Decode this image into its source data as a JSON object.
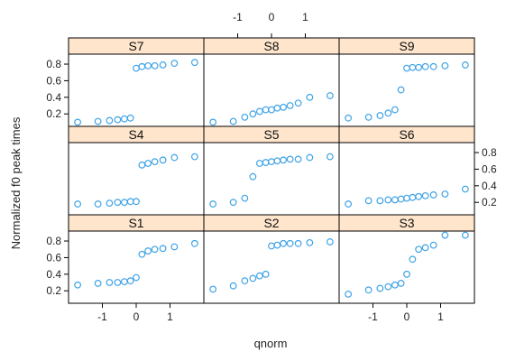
{
  "chart_data": {
    "type": "scatter",
    "layout": "trellis-3x3",
    "xlabel": "qnorm",
    "ylabel": "Normalized f0 peak times",
    "xlim": [
      -2,
      2
    ],
    "ylim": [
      0.05,
      0.92
    ],
    "x_ticks": [
      -1,
      0,
      1
    ],
    "y_ticks": [
      0.2,
      0.4,
      0.6,
      0.8
    ],
    "x_tick_labels": [
      "-1",
      "0",
      "1"
    ],
    "y_tick_labels": [
      "0.2",
      "0.4",
      "0.6",
      "0.8"
    ],
    "strip_color": "#ffe5cc",
    "point_color": "#3fa3e6",
    "panels": [
      {
        "name": "S7",
        "x": [
          -1.73,
          -1.13,
          -0.79,
          -0.55,
          -0.35,
          -0.17,
          0.0,
          0.17,
          0.35,
          0.55,
          0.79,
          1.13,
          1.73
        ],
        "y": [
          0.1,
          0.11,
          0.12,
          0.13,
          0.14,
          0.15,
          0.75,
          0.77,
          0.78,
          0.78,
          0.79,
          0.81,
          0.82
        ]
      },
      {
        "name": "S8",
        "x": [
          -1.73,
          -1.13,
          -0.79,
          -0.55,
          -0.35,
          -0.17,
          0.0,
          0.17,
          0.35,
          0.55,
          0.79,
          1.13,
          1.73
        ],
        "y": [
          0.1,
          0.11,
          0.16,
          0.2,
          0.23,
          0.25,
          0.25,
          0.27,
          0.28,
          0.3,
          0.33,
          0.4,
          0.42
        ]
      },
      {
        "name": "S9",
        "x": [
          -1.73,
          -1.13,
          -0.79,
          -0.55,
          -0.35,
          -0.17,
          0.0,
          0.17,
          0.35,
          0.55,
          0.79,
          1.13,
          1.73
        ],
        "y": [
          0.15,
          0.16,
          0.18,
          0.21,
          0.25,
          0.49,
          0.75,
          0.76,
          0.76,
          0.77,
          0.77,
          0.78,
          0.79
        ]
      },
      {
        "name": "S4",
        "x": [
          -1.73,
          -1.13,
          -0.79,
          -0.55,
          -0.35,
          -0.17,
          0.0,
          0.17,
          0.35,
          0.55,
          0.79,
          1.13,
          1.73
        ],
        "y": [
          0.18,
          0.18,
          0.19,
          0.2,
          0.2,
          0.21,
          0.21,
          0.65,
          0.67,
          0.69,
          0.71,
          0.74,
          0.75
        ]
      },
      {
        "name": "S5",
        "x": [
          -1.73,
          -1.13,
          -0.79,
          -0.55,
          -0.35,
          -0.17,
          0.0,
          0.17,
          0.35,
          0.55,
          0.79,
          1.13,
          1.73
        ],
        "y": [
          0.18,
          0.2,
          0.25,
          0.51,
          0.67,
          0.68,
          0.69,
          0.7,
          0.71,
          0.72,
          0.72,
          0.74,
          0.75
        ]
      },
      {
        "name": "S6",
        "x": [
          -1.73,
          -1.13,
          -0.79,
          -0.55,
          -0.35,
          -0.17,
          0.0,
          0.17,
          0.35,
          0.55,
          0.79,
          1.13,
          1.73
        ],
        "y": [
          0.18,
          0.22,
          0.22,
          0.23,
          0.23,
          0.24,
          0.25,
          0.26,
          0.27,
          0.28,
          0.29,
          0.3,
          0.36
        ]
      },
      {
        "name": "S1",
        "x": [
          -1.73,
          -1.13,
          -0.79,
          -0.55,
          -0.35,
          -0.17,
          0.0,
          0.17,
          0.35,
          0.55,
          0.79,
          1.13,
          1.73
        ],
        "y": [
          0.27,
          0.29,
          0.3,
          0.3,
          0.31,
          0.32,
          0.36,
          0.64,
          0.68,
          0.7,
          0.71,
          0.73,
          0.77
        ]
      },
      {
        "name": "S2",
        "x": [
          -1.73,
          -1.13,
          -0.79,
          -0.55,
          -0.35,
          -0.17,
          0.0,
          0.17,
          0.35,
          0.55,
          0.79,
          1.13,
          1.73
        ],
        "y": [
          0.22,
          0.26,
          0.32,
          0.35,
          0.38,
          0.4,
          0.74,
          0.75,
          0.77,
          0.77,
          0.77,
          0.78,
          0.79
        ]
      },
      {
        "name": "S3",
        "x": [
          -1.73,
          -1.13,
          -0.79,
          -0.55,
          -0.35,
          -0.17,
          0.0,
          0.17,
          0.35,
          0.55,
          0.79,
          1.13,
          1.73
        ],
        "y": [
          0.16,
          0.21,
          0.23,
          0.25,
          0.27,
          0.29,
          0.4,
          0.58,
          0.7,
          0.72,
          0.75,
          0.87,
          0.87
        ]
      }
    ]
  }
}
